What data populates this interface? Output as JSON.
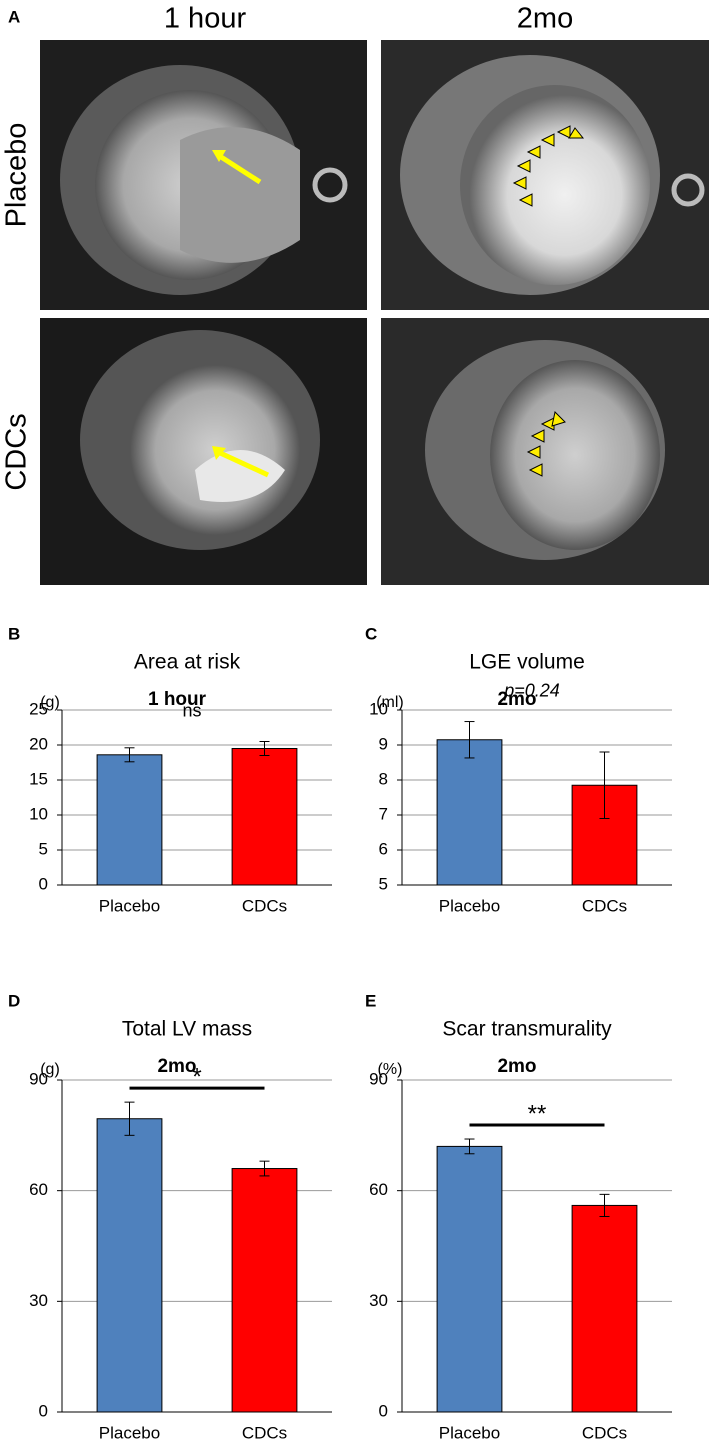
{
  "panel_a": {
    "panel": "A",
    "columns": [
      "1 hour",
      "2mo"
    ],
    "rows": [
      "Placebo",
      "CDCs"
    ]
  },
  "chart_data": [
    {
      "type": "bar",
      "panel": "B",
      "title": "Area at risk",
      "subtitle": "1 hour",
      "ylabel": "(g)",
      "categories": [
        "Placebo",
        "CDCs"
      ],
      "values": [
        18.6,
        19.5
      ],
      "errors": [
        1.0,
        1.0
      ],
      "colors": [
        "#4f81bd",
        "#ff0000"
      ],
      "ylim": [
        0,
        25
      ],
      "yticks": [
        0,
        5,
        10,
        15,
        20,
        25
      ],
      "grid": true,
      "annotation": "ns"
    },
    {
      "type": "bar",
      "panel": "C",
      "title": "LGE volume",
      "subtitle": "2mo",
      "ylabel": "(ml)",
      "categories": [
        "Placebo",
        "CDCs"
      ],
      "values": [
        9.15,
        7.85
      ],
      "errors": [
        0.52,
        0.95
      ],
      "colors": [
        "#4f81bd",
        "#ff0000"
      ],
      "ylim": [
        5,
        10
      ],
      "yticks": [
        5,
        6,
        7,
        8,
        9,
        10
      ],
      "grid": true,
      "annotation": "p=0.24"
    },
    {
      "type": "bar",
      "panel": "D",
      "title": "Total LV mass",
      "subtitle": "2mo",
      "ylabel": "(g)",
      "categories": [
        "Placebo",
        "CDCs"
      ],
      "values": [
        79.5,
        66
      ],
      "errors": [
        4.5,
        2
      ],
      "colors": [
        "#4f81bd",
        "#ff0000"
      ],
      "ylim": [
        0,
        90
      ],
      "yticks": [
        0,
        30,
        60,
        90
      ],
      "grid": true,
      "significance": "*"
    },
    {
      "type": "bar",
      "panel": "E",
      "title": "Scar transmurality",
      "subtitle": "2mo",
      "ylabel": "(%)",
      "categories": [
        "Placebo",
        "CDCs"
      ],
      "values": [
        72,
        56
      ],
      "errors": [
        2,
        3
      ],
      "colors": [
        "#4f81bd",
        "#ff0000"
      ],
      "ylim": [
        0,
        90
      ],
      "yticks": [
        0,
        30,
        60,
        90
      ],
      "grid": true,
      "significance": "**"
    }
  ]
}
